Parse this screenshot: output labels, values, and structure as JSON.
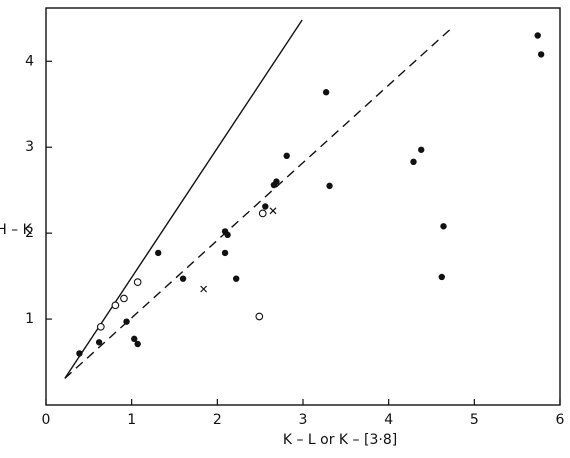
{
  "chart_data": {
    "type": "scatter",
    "x_label": "K – L or K – [3·8]",
    "y_label": "H – K",
    "xlim": [
      0,
      6
    ],
    "ylim": [
      0,
      4.62
    ],
    "xticks": [
      0,
      1,
      2,
      3,
      4,
      5,
      6
    ],
    "yticks": [
      1,
      2,
      3,
      4
    ],
    "series": [
      {
        "marker": "filled-circle",
        "color": "#111111",
        "x": [
          0.39,
          0.62,
          1.03,
          1.07,
          0.94,
          1.31,
          1.6,
          2.09,
          2.09,
          2.12,
          2.22,
          2.56,
          2.66,
          2.69,
          2.81,
          3.27,
          3.31,
          4.29,
          4.38,
          4.64,
          4.62,
          5.74,
          5.78
        ],
        "values": [
          0.6,
          0.73,
          0.77,
          0.71,
          0.97,
          1.77,
          1.47,
          1.77,
          2.02,
          1.98,
          1.47,
          2.31,
          2.56,
          2.6,
          2.9,
          3.64,
          2.55,
          2.83,
          2.97,
          2.08,
          1.49,
          4.3,
          4.08
        ]
      },
      {
        "marker": "open-circle",
        "color": "#111111",
        "x": [
          0.64,
          0.81,
          0.91,
          1.07,
          2.49,
          2.53
        ],
        "values": [
          0.91,
          1.16,
          1.24,
          1.43,
          1.03,
          2.23
        ]
      },
      {
        "marker": "cross",
        "color": "#111111",
        "x": [
          1.84,
          2.65
        ],
        "values": [
          1.35,
          2.26
        ]
      }
    ],
    "lines": [
      {
        "style": "solid",
        "color": "#111111",
        "x": [
          0.22,
          2.99
        ],
        "values": [
          0.31,
          4.48
        ]
      },
      {
        "style": "dashed",
        "color": "#111111",
        "x": [
          0.22,
          4.75
        ],
        "values": [
          0.31,
          4.4
        ]
      }
    ]
  }
}
